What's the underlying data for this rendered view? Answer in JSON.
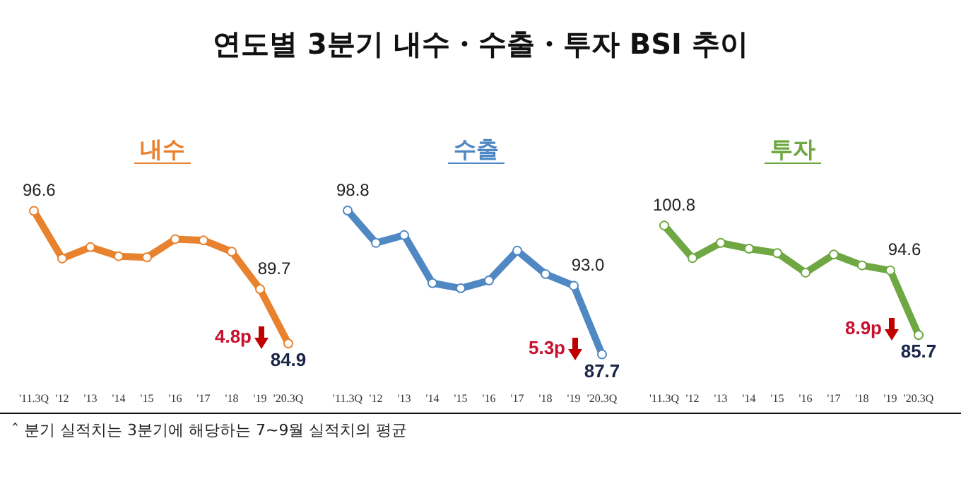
{
  "chart_data": [
    {
      "type": "other",
      "title": "연도별 3분기 내수・수출・투자 BSI 추이"
    },
    {
      "type": "line",
      "title": "내수",
      "categories": [
        "'11.3Q",
        "'12",
        "'13",
        "'14",
        "'15",
        "'16",
        "'17",
        "'18",
        "'19",
        "'20.3Q"
      ],
      "marker": "circle",
      "series": [
        {
          "color": "#e8822e",
          "values": [
            96.6,
            92.4,
            93.4,
            92.6,
            92.5,
            94.1,
            94.0,
            93.0,
            89.7,
            84.9
          ],
          "value_labels": [
            "96.6",
            null,
            null,
            null,
            null,
            null,
            null,
            null,
            "89.7",
            "84.9"
          ]
        }
      ],
      "annotations": [
        "4.8p"
      ]
    },
    {
      "type": "line",
      "title": "수출",
      "categories": [
        "'11.3Q",
        "'12",
        "'13",
        "'14",
        "'15",
        "'16",
        "'17",
        "'18",
        "'19",
        "'20.3Q"
      ],
      "marker": "circle",
      "series": [
        {
          "color": "#4f88c2",
          "values": [
            98.8,
            96.3,
            96.9,
            93.2,
            92.8,
            93.4,
            95.7,
            93.9,
            93.0,
            87.7
          ],
          "value_labels": [
            "98.8",
            null,
            null,
            null,
            null,
            null,
            null,
            null,
            "93.0",
            "87.7"
          ]
        }
      ],
      "annotations": [
        "5.3p"
      ]
    },
    {
      "type": "line",
      "title": "투자",
      "categories": [
        "'11.3Q",
        "'12",
        "'13",
        "'14",
        "'15",
        "'16",
        "'17",
        "'18",
        "'19",
        "'20.3Q"
      ],
      "marker": "circle",
      "series": [
        {
          "color": "#6fa843",
          "values": [
            100.8,
            96.3,
            98.4,
            97.6,
            97.0,
            94.3,
            96.8,
            95.3,
            94.6,
            85.7
          ],
          "value_labels": [
            "100.8",
            null,
            null,
            null,
            null,
            null,
            null,
            null,
            "94.6",
            "85.7"
          ]
        }
      ],
      "annotations": [
        "8.9p"
      ]
    },
    {
      "type": "other",
      "annotations": [
        "ˆ 분기 실적치는 3분기에 해당하는 7~9월 실적치의 평균"
      ]
    }
  ]
}
